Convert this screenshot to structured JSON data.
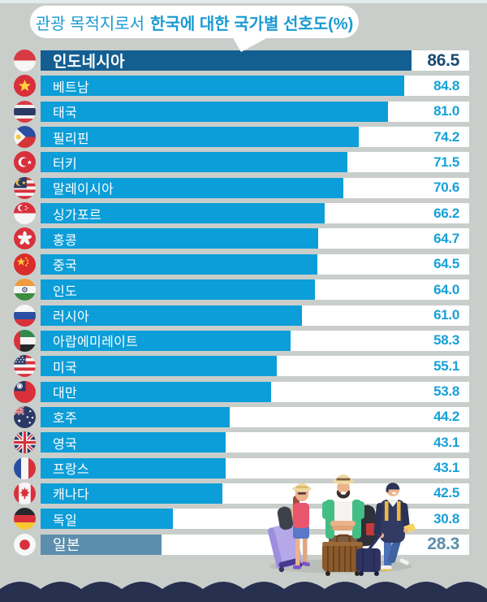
{
  "title": {
    "regular": "관광 목적지로서",
    "bold": "한국에 대한 국가별 선호도(%)"
  },
  "chart_data": {
    "type": "bar",
    "orientation": "horizontal",
    "title": "관광 목적지로서 한국에 대한 국가별 선호도(%)",
    "unit": "%",
    "xlim": [
      0,
      100
    ],
    "grid": false,
    "legend": false,
    "categories": [
      "인도네시아",
      "베트남",
      "태국",
      "필리핀",
      "터키",
      "말레이시아",
      "싱가포르",
      "홍콩",
      "중국",
      "인도",
      "러시아",
      "아랍에미레이트",
      "미국",
      "대만",
      "호주",
      "영국",
      "프랑스",
      "캐나다",
      "독일",
      "일본"
    ],
    "values": [
      86.5,
      84.8,
      81.0,
      74.2,
      71.5,
      70.6,
      66.2,
      64.7,
      64.5,
      64.0,
      61.0,
      58.3,
      55.1,
      53.8,
      44.2,
      43.1,
      43.1,
      42.5,
      30.8,
      28.3
    ],
    "value_labels": [
      "86.5",
      "84.8",
      "81.0",
      "74.2",
      "71.5",
      "70.6",
      "66.2",
      "64.7",
      "64.5",
      "64.0",
      "61.0",
      "58.3",
      "55.1",
      "53.8",
      "44.2",
      "43.1",
      "43.1",
      "42.5",
      "30.8",
      "28.3"
    ],
    "flags": [
      "indonesia",
      "vietnam",
      "thailand",
      "philippines",
      "turkey",
      "malaysia",
      "singapore",
      "hongkong",
      "china",
      "india",
      "russia",
      "uae",
      "usa",
      "taiwan",
      "australia",
      "uk",
      "france",
      "canada",
      "germany",
      "japan"
    ],
    "emphasized_rows": [
      "인도네시아",
      "일본"
    ]
  },
  "colors": {
    "background": "#c9cecb",
    "track": "#ffffff",
    "bar": "#0c9ed8",
    "bar_first": "#135f91",
    "bar_last": "#5d8dac",
    "value": "#17a0d8",
    "value_first": "#1a4a70",
    "value_last": "#5d8dac",
    "title_text": "#1a9ad2",
    "wave": "#27304f"
  },
  "icons": {
    "flag_style": "circular-flag-icon",
    "illustration": "travelers-with-luggage"
  }
}
